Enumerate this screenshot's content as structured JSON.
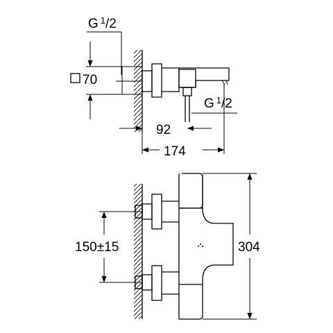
{
  "labels": {
    "thread_top_prefix": "G",
    "thread_top_num": "1",
    "thread_top_den": "/2",
    "thread_side_prefix": "G",
    "thread_side_num": "1",
    "thread_side_den": "/2",
    "square_size": "70",
    "offset_92": "92",
    "depth_174": "174",
    "spacing": "150±15",
    "height_304": "304"
  },
  "icons": {
    "square": "square-symbol-icon"
  }
}
